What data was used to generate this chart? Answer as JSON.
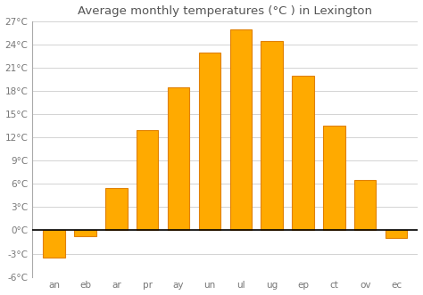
{
  "title": "Average monthly temperatures (°C ) in Lexington",
  "months": [
    "an",
    "eb",
    "ar",
    "pr",
    "ay",
    "un",
    "ul",
    "ug",
    "ep",
    "ct",
    "ov",
    "ec"
  ],
  "values": [
    -3.5,
    -0.8,
    5.5,
    13.0,
    18.5,
    23.0,
    26.0,
    24.5,
    20.0,
    13.5,
    6.5,
    -1.0
  ],
  "bar_color": "#FFAA00",
  "bar_edge_color": "#E08000",
  "background_color": "#ffffff",
  "grid_color": "#cccccc",
  "ylim": [
    -6,
    27
  ],
  "yticks": [
    -6,
    -3,
    0,
    3,
    6,
    9,
    12,
    15,
    18,
    21,
    24,
    27
  ],
  "ytick_labels": [
    "-6°C",
    "-3°C",
    "0°C",
    "3°C",
    "6°C",
    "9°C",
    "12°C",
    "15°C",
    "18°C",
    "21°C",
    "24°C",
    "27°C"
  ],
  "title_fontsize": 9.5,
  "tick_fontsize": 7.5,
  "bar_width": 0.7
}
